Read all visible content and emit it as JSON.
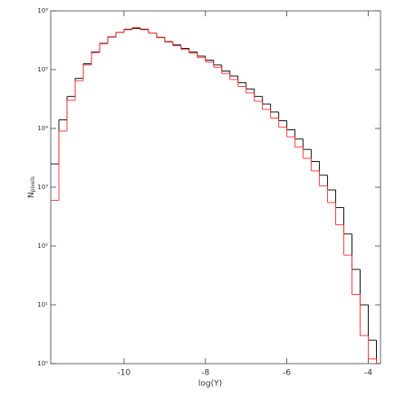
{
  "chart_data": {
    "type": "histogram",
    "x_label": "log(Y)",
    "y_label": "N",
    "y_label_subscript": "pixels",
    "bins": [
      -11.8,
      -11.6,
      -11.4,
      -11.2,
      -11.0,
      -10.8,
      -10.6,
      -10.4,
      -10.2,
      -10.0,
      -9.8,
      -9.6,
      -9.4,
      -9.2,
      -9.0,
      -8.8,
      -8.6,
      -8.4,
      -8.2,
      -8.0,
      -7.8,
      -7.6,
      -7.4,
      -7.2,
      -7.0,
      -6.8,
      -6.6,
      -6.4,
      -6.2,
      -6.0,
      -5.8,
      -5.6,
      -5.4,
      -5.2,
      -5.0,
      -4.8,
      -4.6,
      -4.4,
      -4.2,
      -4.0,
      -3.8
    ],
    "series": [
      {
        "color": "#000000",
        "values": [
          2500,
          14000,
          35000,
          71000,
          126000,
          200000,
          280000,
          360000,
          430000,
          480000,
          500000,
          480000,
          420000,
          355000,
          300000,
          263000,
          230000,
          200000,
          170000,
          145000,
          120000,
          95000,
          78000,
          60000,
          47000,
          35000,
          26000,
          19000,
          13500,
          9500,
          6600,
          4400,
          2750,
          1600,
          900,
          450,
          160,
          40,
          10,
          2.5
        ]
      },
      {
        "color": "#ff3030",
        "values": [
          600,
          9000,
          30000,
          65000,
          120000,
          195000,
          275000,
          355000,
          430000,
          490000,
          520000,
          490000,
          420000,
          350000,
          295000,
          255000,
          220000,
          190000,
          160000,
          135000,
          110000,
          86000,
          68000,
          52000,
          40000,
          29000,
          21000,
          15000,
          10500,
          7200,
          4800,
          3100,
          1900,
          1050,
          550,
          230,
          70,
          15,
          3,
          1.2
        ]
      }
    ],
    "xlim": [
      -11.8,
      -3.7
    ],
    "xticks": [
      -10,
      -8,
      -6,
      -4
    ],
    "ylim": [
      1,
      1000000
    ],
    "ylog": true,
    "yticks": [
      {
        "value": 1,
        "label": "10⁰"
      },
      {
        "value": 10,
        "label": "10¹"
      },
      {
        "value": 100,
        "label": "10²"
      },
      {
        "value": 1000,
        "label": "10³"
      },
      {
        "value": 10000,
        "label": "10⁴"
      },
      {
        "value": 100000,
        "label": "10⁵"
      },
      {
        "value": 1000000,
        "label": "10⁶"
      }
    ]
  }
}
